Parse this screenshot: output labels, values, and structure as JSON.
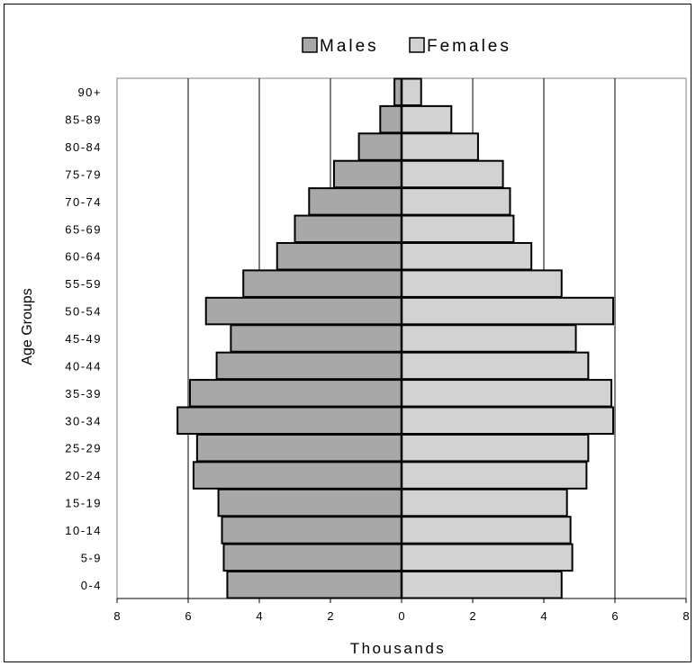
{
  "chart_data": {
    "type": "bar",
    "orientation": "horizontal",
    "layout": "population-pyramid",
    "title": "",
    "xlabel": "Thousands",
    "ylabel": "Age Groups",
    "categories": [
      "0-4",
      "5-9",
      "10-14",
      "15-19",
      "20-24",
      "25-29",
      "30-34",
      "35-39",
      "40-44",
      "45-49",
      "50-54",
      "55-59",
      "60-64",
      "65-69",
      "70-74",
      "75-79",
      "80-84",
      "85-89",
      "90+"
    ],
    "xlim": [
      -8,
      8
    ],
    "x_tick_values": [
      -8,
      -6,
      -4,
      -2,
      0,
      2,
      4,
      6,
      8
    ],
    "x_tick_labels": [
      "8",
      "6",
      "4",
      "2",
      "0",
      "2",
      "4",
      "6",
      "8"
    ],
    "grid": "vertical",
    "legend_position": "top",
    "series": [
      {
        "name": "Males",
        "color": "#a8a8a8",
        "values": [
          4.9,
          5.0,
          5.05,
          5.15,
          5.85,
          5.75,
          6.3,
          5.95,
          5.2,
          4.8,
          5.5,
          4.45,
          3.5,
          3.0,
          2.6,
          1.9,
          1.2,
          0.6,
          0.2
        ]
      },
      {
        "name": "Females",
        "color": "#d2d2d2",
        "values": [
          4.5,
          4.8,
          4.75,
          4.65,
          5.2,
          5.25,
          5.95,
          5.9,
          5.25,
          4.9,
          5.95,
          4.5,
          3.65,
          3.15,
          3.05,
          2.85,
          2.15,
          1.4,
          0.55
        ]
      }
    ]
  }
}
